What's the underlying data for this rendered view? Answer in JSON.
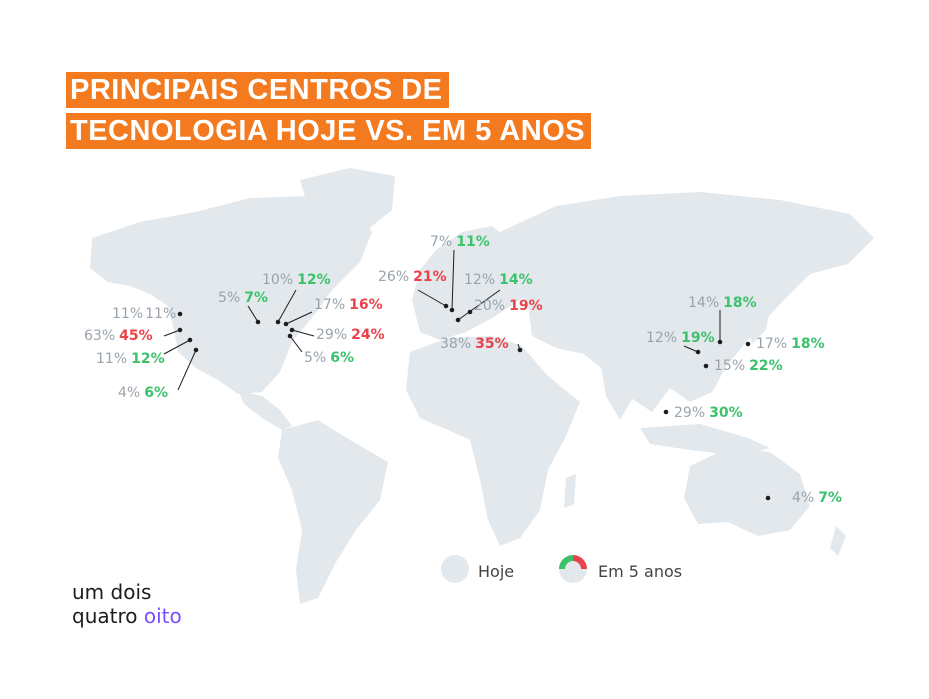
{
  "title": {
    "line1": "PRINCIPAIS CENTROS DE",
    "line2": "TECNOLOGIA HOJE VS. EM 5 ANOS"
  },
  "colors": {
    "title_bg": "#f47a1f",
    "map_land": "#e3e8ec",
    "today_text": "#9aa3ad",
    "increase": "#3cc26b",
    "decrease": "#e8424b",
    "brand_accent": "#7a4dff"
  },
  "hubs": [
    {
      "name": "west-coast-north",
      "today": "11%",
      "future": "11%",
      "trend": "same"
    },
    {
      "name": "west-coast-bay",
      "today": "63%",
      "future": "45%",
      "trend": "down"
    },
    {
      "name": "west-coast-la",
      "today": "11%",
      "future": "12%",
      "trend": "up"
    },
    {
      "name": "southwest",
      "today": "4%",
      "future": "6%",
      "trend": "up"
    },
    {
      "name": "chicago",
      "today": "5%",
      "future": "7%",
      "trend": "up"
    },
    {
      "name": "toronto",
      "today": "10%",
      "future": "12%",
      "trend": "up"
    },
    {
      "name": "boston",
      "today": "17%",
      "future": "16%",
      "trend": "down"
    },
    {
      "name": "new-york",
      "today": "29%",
      "future": "24%",
      "trend": "down"
    },
    {
      "name": "washington",
      "today": "5%",
      "future": "6%",
      "trend": "up"
    },
    {
      "name": "scandinavia",
      "today": "7%",
      "future": "11%",
      "trend": "up"
    },
    {
      "name": "london",
      "today": "26%",
      "future": "21%",
      "trend": "down"
    },
    {
      "name": "berlin",
      "today": "12%",
      "future": "14%",
      "trend": "up"
    },
    {
      "name": "eastern-europe",
      "today": "20%",
      "future": "19%",
      "trend": "down"
    },
    {
      "name": "israel",
      "today": "38%",
      "future": "35%",
      "trend": "down"
    },
    {
      "name": "beijing",
      "today": "14%",
      "future": "18%",
      "trend": "up"
    },
    {
      "name": "shanghai-west",
      "today": "12%",
      "future": "19%",
      "trend": "up"
    },
    {
      "name": "japan",
      "today": "17%",
      "future": "18%",
      "trend": "up"
    },
    {
      "name": "south-china",
      "today": "15%",
      "future": "22%",
      "trend": "up"
    },
    {
      "name": "southeast-asia",
      "today": "29%",
      "future": "30%",
      "trend": "up"
    },
    {
      "name": "australia",
      "today": "4%",
      "future": "7%",
      "trend": "up"
    }
  ],
  "legend": {
    "today_label": "Hoje",
    "future_label": "Em 5 anos"
  },
  "brand": {
    "line1": "um dois",
    "line2_a": "quatro ",
    "line2_b": "oito"
  }
}
